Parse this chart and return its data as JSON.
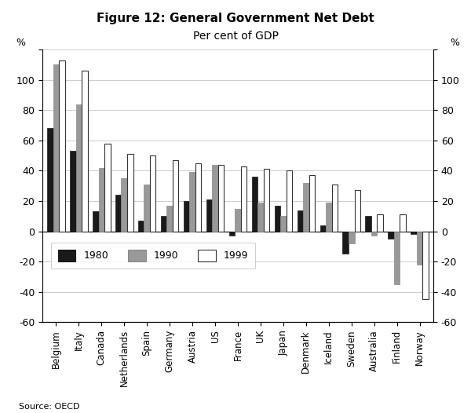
{
  "title": "Figure 12: General Government Net Debt",
  "subtitle": "Per cent of GDP",
  "source": "Source: OECD",
  "categories": [
    "Belgium",
    "Italy",
    "Canada",
    "Netherlands",
    "Spain",
    "Germany",
    "Austria",
    "US",
    "France",
    "UK",
    "Japan",
    "Denmark",
    "Iceland",
    "Sweden",
    "Australia",
    "Finland",
    "Norway"
  ],
  "series": {
    "1980": [
      68,
      53,
      13,
      24,
      7,
      10,
      20,
      21,
      -3,
      36,
      17,
      14,
      4,
      -15,
      10,
      -5,
      -2
    ],
    "1990": [
      110,
      84,
      42,
      35,
      31,
      17,
      39,
      44,
      15,
      19,
      10,
      32,
      19,
      -8,
      -3,
      -35,
      -22
    ],
    "1999": [
      113,
      106,
      58,
      51,
      50,
      47,
      45,
      44,
      43,
      41,
      40,
      37,
      31,
      27,
      11,
      11,
      -45
    ]
  },
  "bar_colors": {
    "1980": "#1a1a1a",
    "1990": "#999999",
    "1999": "#ffffff"
  },
  "bar_edgecolors": {
    "1980": "#1a1a1a",
    "1990": "#888888",
    "1999": "#333333"
  },
  "ylim": [
    -60,
    120
  ],
  "yticks": [
    -60,
    -40,
    -20,
    0,
    20,
    40,
    60,
    80,
    100,
    120
  ],
  "ytick_labels": [
    "-60",
    "-40",
    "-20",
    "0",
    "20",
    "40",
    "60",
    "80",
    "100",
    ""
  ],
  "ylabel_left": "%",
  "ylabel_right": "%",
  "background_color": "#ffffff",
  "grid_color": "#cccccc",
  "fig_width": 6.0,
  "fig_height": 5.26
}
